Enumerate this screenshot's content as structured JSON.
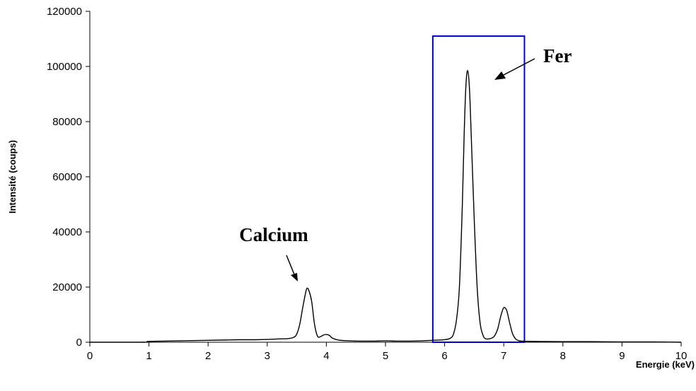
{
  "chart_data": {
    "type": "line",
    "xlabel": "Energie (keV)",
    "ylabel": "Intensité (coups)",
    "xlim": [
      0,
      10
    ],
    "ylim": [
      0,
      120000
    ],
    "x_ticks": [
      "0",
      "1",
      "2",
      "3",
      "4",
      "5",
      "6",
      "7",
      "8",
      "9",
      "10"
    ],
    "y_ticks": [
      "0",
      "20000",
      "40000",
      "60000",
      "80000",
      "100000",
      "120000"
    ],
    "grid": false,
    "legend": "none",
    "line_color": "#000000",
    "series": [
      {
        "x": [
          0.0,
          0.9,
          1.0,
          1.5,
          2.0,
          2.3,
          2.5,
          2.8,
          3.0,
          3.2,
          3.35,
          3.45,
          3.5,
          3.55,
          3.6,
          3.65,
          3.67,
          3.7,
          3.75,
          3.8,
          3.85,
          3.9,
          3.95,
          4.0,
          4.05,
          4.1,
          4.2,
          4.4,
          4.6,
          4.8,
          5.0,
          5.2,
          5.4,
          5.6,
          5.8,
          6.0,
          6.1,
          6.15,
          6.2,
          6.25,
          6.3,
          6.33,
          6.36,
          6.39,
          6.42,
          6.45,
          6.5,
          6.55,
          6.6,
          6.65,
          6.7,
          6.8,
          6.85,
          6.9,
          6.95,
          7.0,
          7.05,
          7.1,
          7.15,
          7.2,
          7.25,
          7.3,
          7.5,
          8.0,
          8.5,
          9.0,
          9.5,
          10.0
        ],
        "y": [
          0,
          0,
          300,
          500,
          700,
          800,
          900,
          900,
          1000,
          1200,
          1300,
          1800,
          3000,
          6500,
          12500,
          18000,
          19500,
          19000,
          15000,
          6500,
          2200,
          2000,
          2600,
          2800,
          2500,
          1500,
          800,
          500,
          400,
          400,
          500,
          400,
          400,
          500,
          700,
          900,
          1500,
          3000,
          8000,
          20000,
          50000,
          75000,
          93000,
          98500,
          92000,
          75000,
          45000,
          20000,
          7000,
          2500,
          1200,
          1500,
          2500,
          5000,
          9500,
          12500,
          11500,
          7000,
          3000,
          1200,
          600,
          400,
          300,
          200,
          200,
          100,
          100,
          0
        ]
      }
    ],
    "annotations": [
      {
        "text": "Calcium",
        "x": 3.65,
        "y": 19500
      },
      {
        "text": "Fer",
        "x": 6.85,
        "y": 104000
      }
    ],
    "highlight_box": {
      "x0": 5.8,
      "x1": 7.35,
      "y0": 0,
      "y1": 111000,
      "color": "#0000cc"
    }
  }
}
